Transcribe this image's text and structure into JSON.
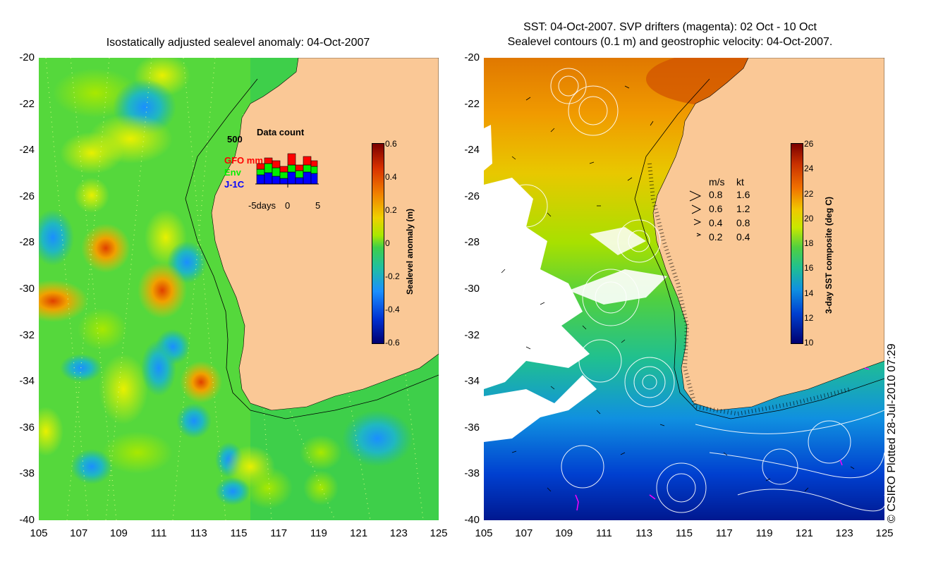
{
  "left_panel": {
    "title": "Isostatically adjusted sealevel anomaly: 04-Oct-2007",
    "y_ticks": [
      "-20",
      "-22",
      "-24",
      "-26",
      "-28",
      "-30",
      "-32",
      "-34",
      "-36",
      "-38",
      "-40"
    ],
    "x_ticks": [
      "105",
      "107",
      "109",
      "111",
      "113",
      "115",
      "117",
      "119",
      "121",
      "123",
      "125"
    ],
    "colorbar": {
      "label": "Sealevel anomaly (m)",
      "ticks": [
        "0.6",
        "0.4",
        "0.2",
        "0",
        "-0.2",
        "-0.4",
        "-0.6"
      ],
      "range": [
        -0.6,
        0.6
      ]
    },
    "data_count": {
      "title": "Data count",
      "y_max_label": "500",
      "series": [
        {
          "name": "GFO mm",
          "color": "#ff0000"
        },
        {
          "name": "Env",
          "color": "#00ee00"
        },
        {
          "name": "J-1C",
          "color": "#0000ff"
        }
      ],
      "x_labels": [
        "-5days",
        "0",
        "5"
      ]
    }
  },
  "right_panel": {
    "title_line1": "SST: 04-Oct-2007. SVP drifters (magenta): 02 Oct - 10 Oct",
    "title_line2": "Sealevel contours (0.1 m) and geostrophic velocity: 04-Oct-2007.",
    "y_ticks": [
      "-20",
      "-22",
      "-24",
      "-26",
      "-28",
      "-30",
      "-32",
      "-34",
      "-36",
      "-38",
      "-40"
    ],
    "x_ticks": [
      "105",
      "107",
      "109",
      "111",
      "113",
      "115",
      "117",
      "119",
      "121",
      "123",
      "125"
    ],
    "colorbar": {
      "label": "3-day SST composite (deg C)",
      "ticks": [
        "26",
        "24",
        "22",
        "20",
        "18",
        "16",
        "14",
        "12",
        "10"
      ],
      "range": [
        10,
        26
      ]
    },
    "velocity_legend": {
      "header_ms": "m/s",
      "header_kt": "kt",
      "rows": [
        {
          "ms": "0.8",
          "kt": "1.6"
        },
        {
          "ms": "0.6",
          "kt": "1.2"
        },
        {
          "ms": "0.4",
          "kt": "0.8"
        },
        {
          "ms": "0.2",
          "kt": "0.4"
        }
      ]
    }
  },
  "credit": "© CSIRO Plotted 28-Jul-2010 07:29"
}
